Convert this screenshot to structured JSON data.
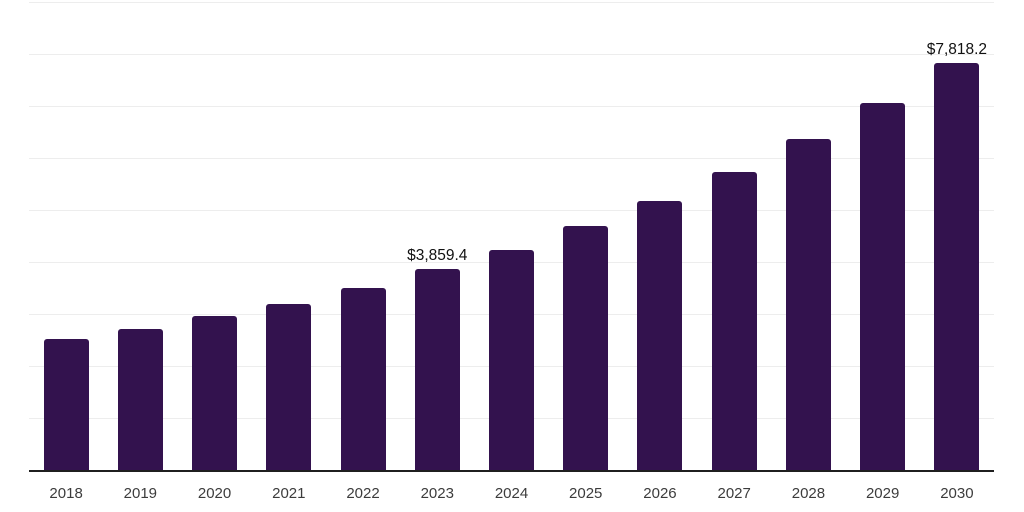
{
  "chart_data": {
    "type": "bar",
    "title": "",
    "xlabel": "",
    "ylabel": "",
    "categories": [
      "2018",
      "2019",
      "2020",
      "2021",
      "2022",
      "2023",
      "2024",
      "2025",
      "2026",
      "2027",
      "2028",
      "2029",
      "2030"
    ],
    "values": [
      2520,
      2710,
      2960,
      3190,
      3500,
      3859.4,
      4230,
      4690,
      5170,
      5730,
      6360,
      7060,
      7818.2
    ],
    "data_labels": [
      "",
      "",
      "",
      "",
      "",
      "$3,859.4",
      "",
      "",
      "",
      "",
      "",
      "",
      "$7,818.2"
    ],
    "ylim": [
      0,
      9000
    ],
    "grid_step": 1000,
    "grid": true,
    "legend": false,
    "y_axis_labels_visible": false,
    "colors": {
      "bar": "#33124E",
      "grid": "#EDEDED",
      "axis": "#1F1F1F",
      "tick_label": "#3C3C3C",
      "data_label": "#111111",
      "background": "#FFFFFF"
    }
  }
}
